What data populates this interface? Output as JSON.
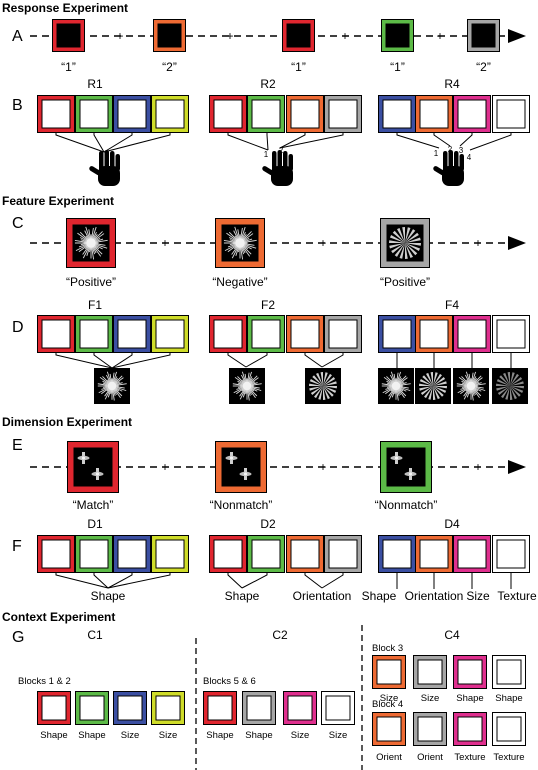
{
  "colors": {
    "red": "#e0262f",
    "green": "#5cba47",
    "blue": "#3b4fa2",
    "yellow": "#cfdc29",
    "orange": "#ee6a33",
    "gray": "#a6a6a6",
    "magenta": "#df2f8e",
    "white": "#ffffff",
    "black": "#000000"
  },
  "response": {
    "title": "Response Experiment",
    "panel_a": "A",
    "panel_b": "B",
    "fixation": "+",
    "trials": [
      {
        "color": "red",
        "label": "“1”"
      },
      {
        "color": "orange",
        "label": "“2”"
      },
      {
        "color": "red",
        "label": "“1”"
      },
      {
        "color": "green",
        "label": "“1”"
      },
      {
        "color": "gray",
        "label": "“2”"
      }
    ],
    "groups": [
      {
        "title": "R1",
        "colors": [
          "red",
          "green",
          "blue",
          "yellow"
        ],
        "finger_labels": []
      },
      {
        "title": "R2",
        "colors": [
          "red",
          "green",
          "orange",
          "gray"
        ],
        "finger_labels": [
          "1",
          "2"
        ]
      },
      {
        "title": "R4",
        "colors": [
          "blue",
          "orange",
          "magenta",
          "white"
        ],
        "finger_labels": [
          "1",
          "2",
          "3",
          "4"
        ]
      }
    ]
  },
  "feature": {
    "title": "Feature Experiment",
    "panel_c": "C",
    "panel_d": "D",
    "fixation": "+",
    "trials": [
      {
        "color": "red",
        "label": "“Positive”",
        "stim": "spiky"
      },
      {
        "color": "orange",
        "label": "“Negative”",
        "stim": "spiky"
      },
      {
        "color": "gray",
        "label": "“Positive”",
        "stim": "radial"
      }
    ],
    "groups": [
      {
        "title": "F1",
        "colors": [
          "red",
          "green",
          "blue",
          "yellow"
        ]
      },
      {
        "title": "F2",
        "colors": [
          "red",
          "green",
          "orange",
          "gray"
        ]
      },
      {
        "title": "F4",
        "colors": [
          "blue",
          "orange",
          "magenta",
          "white"
        ]
      }
    ]
  },
  "dimension": {
    "title": "Dimension Experiment",
    "panel_e": "E",
    "panel_f": "F",
    "fixation": "+",
    "trials": [
      {
        "color": "red",
        "label": "“Match”"
      },
      {
        "color": "orange",
        "label": "“Nonmatch”"
      },
      {
        "color": "green",
        "label": "“Nonmatch”"
      }
    ],
    "groups": [
      {
        "title": "D1",
        "colors": [
          "red",
          "green",
          "blue",
          "yellow"
        ],
        "labels": [
          "Shape"
        ]
      },
      {
        "title": "D2",
        "colors": [
          "red",
          "green",
          "orange",
          "gray"
        ],
        "labels": [
          "Shape",
          "Orientation"
        ]
      },
      {
        "title": "D4",
        "colors": [
          "blue",
          "orange",
          "magenta",
          "white"
        ],
        "labels": [
          "Shape",
          "Orientation",
          "Size",
          "Texture"
        ]
      }
    ]
  },
  "context": {
    "title": "Context Experiment",
    "panel_g": "G",
    "c1": {
      "title": "C1",
      "block_label": "Blocks 1 & 2",
      "colors": [
        "red",
        "green",
        "blue",
        "yellow"
      ],
      "labels": [
        "Shape",
        "Shape",
        "Size",
        "Size"
      ]
    },
    "c2": {
      "title": "C2",
      "block_label": "Blocks 5 & 6",
      "colors": [
        "red",
        "gray",
        "magenta",
        "white"
      ],
      "labels": [
        "Shape",
        "Shape",
        "Size",
        "Size"
      ]
    },
    "c4": {
      "title": "C4",
      "block3_label": "Block 3",
      "block3_colors": [
        "orange",
        "gray",
        "magenta",
        "white"
      ],
      "block3_labels": [
        "Size",
        "Size",
        "Shape",
        "Shape"
      ],
      "block4_label": "Block 4",
      "block4_colors": [
        "orange",
        "gray",
        "magenta",
        "white"
      ],
      "block4_labels": [
        "Orient",
        "Orient",
        "Texture",
        "Texture"
      ]
    }
  }
}
